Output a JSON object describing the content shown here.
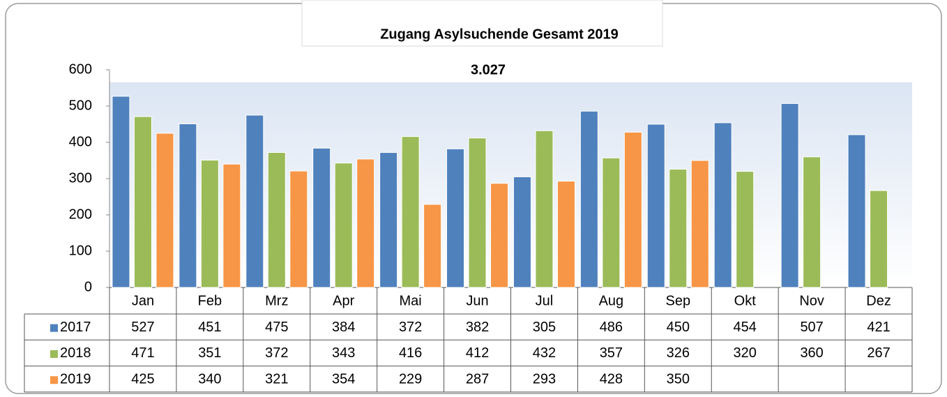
{
  "chart_data": {
    "type": "bar",
    "title": "Zugang Asylsuchende Gesamt   2019",
    "subtitle": "3.027",
    "categories": [
      "Jan",
      "Feb",
      "Mrz",
      "Apr",
      "Mai",
      "Jun",
      "Jul",
      "Aug",
      "Sep",
      "Okt",
      "Nov",
      "Dez"
    ],
    "series": [
      {
        "name": "2017",
        "color": "#4f81bd",
        "values": [
          527,
          451,
          475,
          384,
          372,
          382,
          305,
          486,
          450,
          454,
          507,
          421
        ]
      },
      {
        "name": "2018",
        "color": "#9bbb59",
        "values": [
          471,
          351,
          372,
          343,
          416,
          412,
          432,
          357,
          326,
          320,
          360,
          267
        ]
      },
      {
        "name": "2019",
        "color": "#f79646",
        "values": [
          425,
          340,
          321,
          354,
          229,
          287,
          293,
          428,
          350,
          null,
          null,
          null
        ]
      }
    ],
    "ylim": [
      0,
      600
    ],
    "yticks": [
      0,
      100,
      200,
      300,
      400,
      500,
      600
    ],
    "grid": false
  }
}
